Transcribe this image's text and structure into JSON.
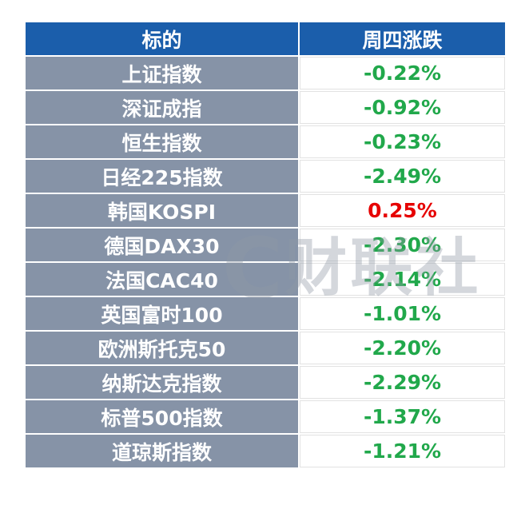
{
  "chart_data": {
    "type": "table",
    "columns": [
      "标的",
      "周四涨跌"
    ],
    "rows": [
      {
        "label": "上证指数",
        "change": "-0.22%",
        "trend": "down"
      },
      {
        "label": "深证成指",
        "change": "-0.92%",
        "trend": "down"
      },
      {
        "label": "恒生指数",
        "change": "-0.23%",
        "trend": "down"
      },
      {
        "label": "日经225指数",
        "change": "-2.49%",
        "trend": "down"
      },
      {
        "label": "韩国KOSPI",
        "change": "0.25%",
        "trend": "up"
      },
      {
        "label": "德国DAX30",
        "change": "-2.30%",
        "trend": "down"
      },
      {
        "label": "法国CAC40",
        "change": "-2.14%",
        "trend": "down"
      },
      {
        "label": "英国富时100",
        "change": "-1.01%",
        "trend": "down"
      },
      {
        "label": "欧洲斯托克50",
        "change": "-2.20%",
        "trend": "down"
      },
      {
        "label": "纳斯达克指数",
        "change": "-2.29%",
        "trend": "down"
      },
      {
        "label": "标普500指数",
        "change": "-1.37%",
        "trend": "down"
      },
      {
        "label": "道琼斯指数",
        "change": "-1.21%",
        "trend": "down"
      }
    ]
  },
  "watermark": {
    "logo": "C",
    "text": "财联社"
  },
  "colors": {
    "header_bg": "#1b5eab",
    "label_bg": "#8693a7",
    "up": "#e60000",
    "down": "#21a84b"
  }
}
